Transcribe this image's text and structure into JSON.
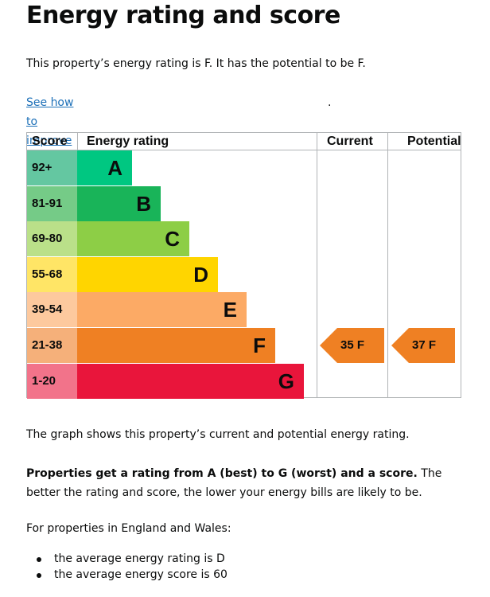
{
  "title": "Energy rating and score",
  "intro": "This property’s energy rating is F. It has the potential to be F.",
  "link_text": "See how to improve this property’s energy efficiency",
  "link_suffix": ".",
  "chart": {
    "headers": {
      "score": "Score",
      "rating": "Energy rating",
      "current": "Current",
      "potential": "Potential"
    },
    "bands": [
      {
        "letter": "A",
        "range": "92+",
        "bar_color": "#00c781",
        "score_bg": "#64c7a1"
      },
      {
        "letter": "B",
        "range": "81-91",
        "bar_color": "#19b459",
        "score_bg": "#75cb87"
      },
      {
        "letter": "C",
        "range": "69-80",
        "bar_color": "#8dce46",
        "score_bg": "#bae089"
      },
      {
        "letter": "D",
        "range": "55-68",
        "bar_color": "#ffd500",
        "score_bg": "#ffe566"
      },
      {
        "letter": "E",
        "range": "39-54",
        "bar_color": "#fcaa65",
        "score_bg": "#fdc99e"
      },
      {
        "letter": "F",
        "range": "21-38",
        "bar_color": "#ef8023",
        "score_bg": "#f5b07a"
      },
      {
        "letter": "G",
        "range": "1-20",
        "bar_color": "#e9153b",
        "score_bg": "#f2738a"
      }
    ],
    "current": {
      "label": "35 F",
      "band": "F",
      "color": "#ef8023"
    },
    "potential": {
      "label": "37 F",
      "band": "F",
      "color": "#ef8023"
    }
  },
  "graph_caption": "The graph shows this property’s current and potential energy rating.",
  "rating_note_bold": "Properties get a rating from A (best) to G (worst) and a score.",
  "rating_note_rest": " The better the rating and score, the lower your energy bills are likely to be.",
  "averages_intro": "For properties in England and Wales:",
  "averages": [
    "the average energy rating is D",
    "the average energy score is 60"
  ]
}
